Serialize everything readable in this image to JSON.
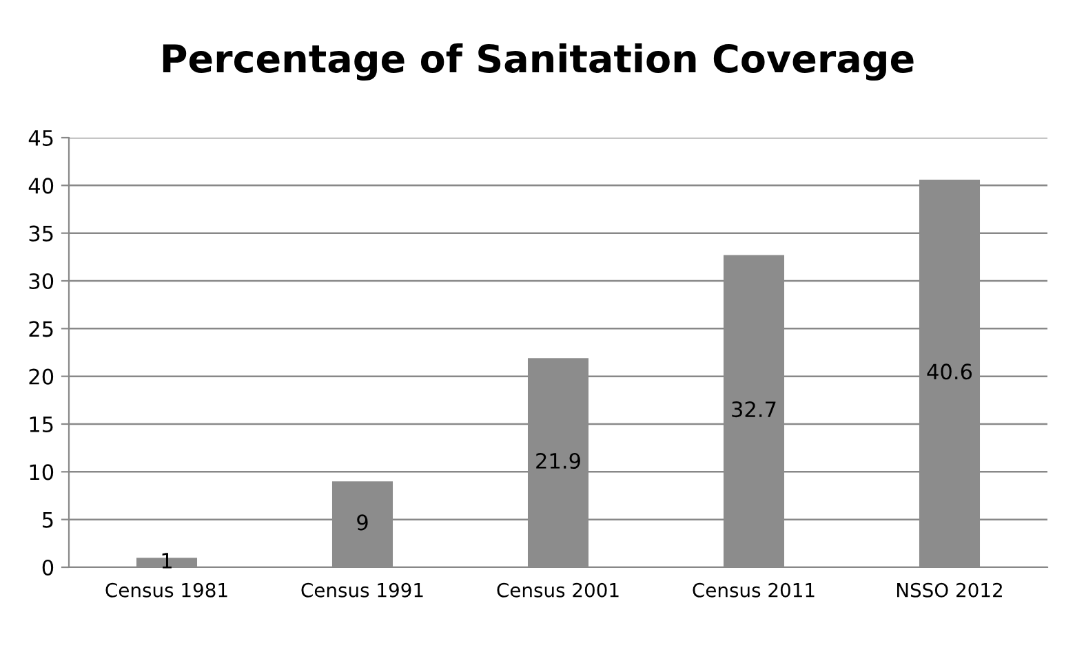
{
  "chart_data": {
    "type": "bar",
    "title": "Percentage of Sanitation Coverage",
    "categories": [
      "Census 1981",
      "Census 1991",
      "Census 2001",
      "Census 2011",
      "NSSO 2012"
    ],
    "values": [
      1,
      9,
      21.9,
      32.7,
      40.6
    ],
    "color": "#8c8c8c",
    "ylim": [
      0,
      45
    ],
    "yticks": [
      0,
      5,
      10,
      15,
      20,
      25,
      30,
      35,
      40,
      45
    ],
    "grid": "y",
    "data_labels": true
  }
}
